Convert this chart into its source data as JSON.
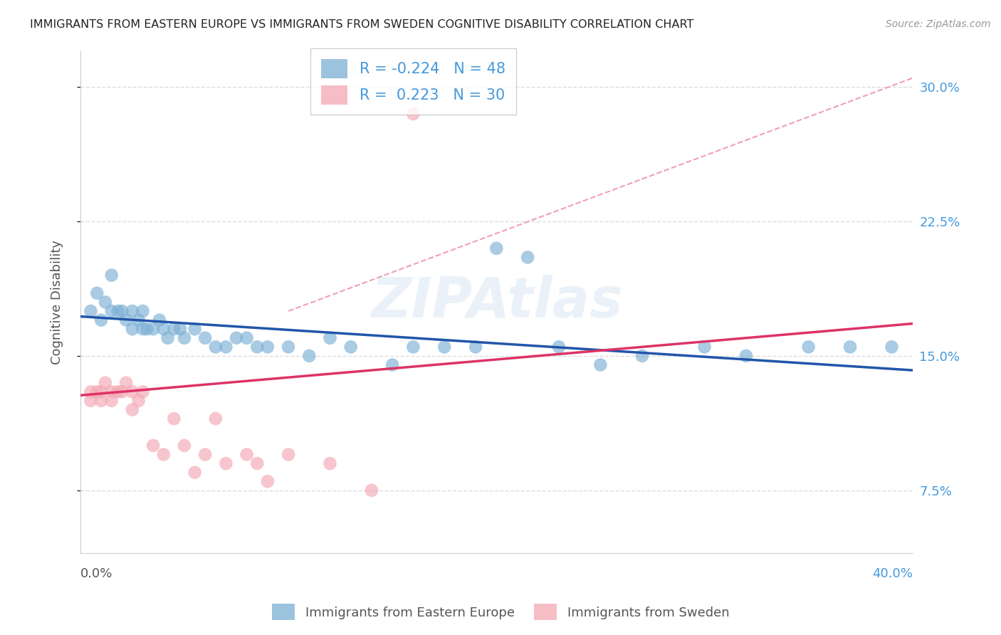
{
  "title": "IMMIGRANTS FROM EASTERN EUROPE VS IMMIGRANTS FROM SWEDEN COGNITIVE DISABILITY CORRELATION CHART",
  "source": "Source: ZipAtlas.com",
  "ylabel": "Cognitive Disability",
  "xlim": [
    0.0,
    0.4
  ],
  "ylim": [
    0.04,
    0.32
  ],
  "yticks": [
    0.075,
    0.15,
    0.225,
    0.3
  ],
  "ytick_labels": [
    "7.5%",
    "15.0%",
    "22.5%",
    "30.0%"
  ],
  "blue_R": "-0.224",
  "blue_N": "48",
  "pink_R": "0.223",
  "pink_N": "30",
  "blue_color": "#7BAFD4",
  "pink_color": "#F4A7B2",
  "blue_line_color": "#2255AA",
  "pink_line_color": "#DD3366",
  "dash_color": "#F0A0B0",
  "blue_label": "Immigrants from Eastern Europe",
  "pink_label": "Immigrants from Sweden",
  "watermark": "ZIPAtlas",
  "blue_scatter_x": [
    0.005,
    0.008,
    0.01,
    0.012,
    0.015,
    0.015,
    0.018,
    0.02,
    0.022,
    0.025,
    0.025,
    0.028,
    0.03,
    0.03,
    0.032,
    0.035,
    0.038,
    0.04,
    0.042,
    0.045,
    0.048,
    0.05,
    0.055,
    0.06,
    0.065,
    0.07,
    0.075,
    0.08,
    0.085,
    0.09,
    0.1,
    0.11,
    0.12,
    0.13,
    0.15,
    0.16,
    0.175,
    0.19,
    0.2,
    0.215,
    0.23,
    0.25,
    0.27,
    0.3,
    0.32,
    0.35,
    0.37,
    0.39
  ],
  "blue_scatter_y": [
    0.175,
    0.185,
    0.17,
    0.18,
    0.195,
    0.175,
    0.175,
    0.175,
    0.17,
    0.175,
    0.165,
    0.17,
    0.175,
    0.165,
    0.165,
    0.165,
    0.17,
    0.165,
    0.16,
    0.165,
    0.165,
    0.16,
    0.165,
    0.16,
    0.155,
    0.155,
    0.16,
    0.16,
    0.155,
    0.155,
    0.155,
    0.15,
    0.16,
    0.155,
    0.145,
    0.155,
    0.155,
    0.155,
    0.21,
    0.205,
    0.155,
    0.145,
    0.15,
    0.155,
    0.15,
    0.155,
    0.155,
    0.155
  ],
  "pink_scatter_x": [
    0.005,
    0.005,
    0.008,
    0.01,
    0.01,
    0.012,
    0.015,
    0.015,
    0.018,
    0.02,
    0.022,
    0.025,
    0.025,
    0.028,
    0.03,
    0.035,
    0.04,
    0.045,
    0.05,
    0.055,
    0.06,
    0.065,
    0.07,
    0.08,
    0.085,
    0.09,
    0.1,
    0.12,
    0.14,
    0.16
  ],
  "pink_scatter_y": [
    0.13,
    0.125,
    0.13,
    0.13,
    0.125,
    0.135,
    0.13,
    0.125,
    0.13,
    0.13,
    0.135,
    0.13,
    0.12,
    0.125,
    0.13,
    0.1,
    0.095,
    0.115,
    0.1,
    0.085,
    0.095,
    0.115,
    0.09,
    0.095,
    0.09,
    0.08,
    0.095,
    0.09,
    0.075,
    0.285
  ],
  "blue_trend_x": [
    0.0,
    0.4
  ],
  "blue_trend_y": [
    0.172,
    0.142
  ],
  "pink_trend_x": [
    0.0,
    0.4
  ],
  "pink_trend_y": [
    0.128,
    0.168
  ],
  "dash_trend_x": [
    0.1,
    0.4
  ],
  "dash_trend_y": [
    0.175,
    0.305
  ],
  "title_color": "#222222",
  "source_color": "#999999",
  "axis_label_color": "#555555",
  "tick_color_right": "#4499DD",
  "grid_color": "#DDDDDD",
  "legend_edge_color": "#BBBBBB"
}
